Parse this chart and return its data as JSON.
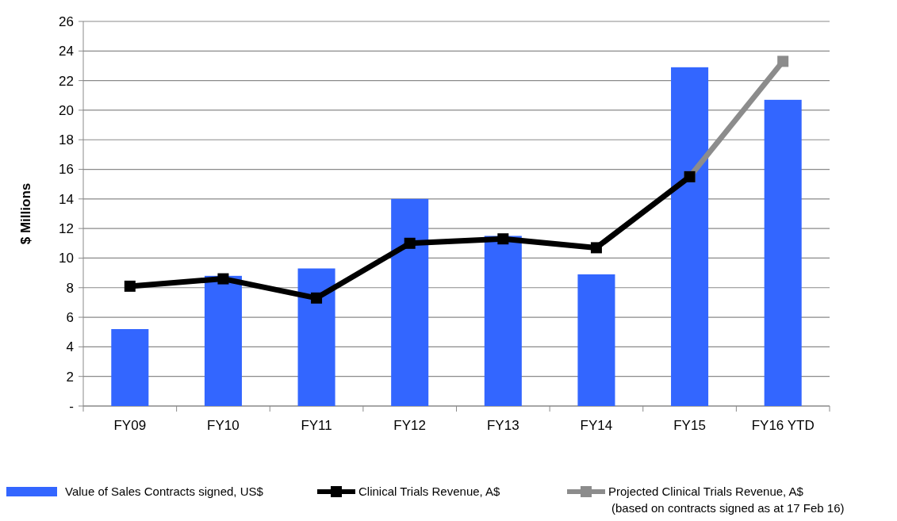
{
  "chart_data": {
    "type": "bar",
    "ylabel": "$ Millions",
    "categories": [
      "FY09",
      "FY10",
      "FY11",
      "FY12",
      "FY13",
      "FY14",
      "FY15",
      "FY16 YTD"
    ],
    "series": [
      {
        "name": "Value of Sales Contracts signed, US$",
        "color": "#3366ff",
        "values": [
          5.2,
          8.8,
          9.3,
          14.0,
          11.5,
          8.9,
          22.9,
          20.7
        ]
      },
      {
        "name": "Clinical Trials Revenue, A$",
        "type": "line",
        "color": "#000000",
        "marker": "square",
        "values": [
          8.1,
          8.6,
          7.3,
          11.0,
          11.3,
          10.7,
          15.5,
          null
        ]
      },
      {
        "name": "Projected Clinical Trials Revenue, A$\n(based on contracts signed as at 17 Feb 16)",
        "type": "line",
        "color": "#8c8c8c",
        "marker": "square",
        "values": [
          null,
          null,
          null,
          null,
          null,
          null,
          15.5,
          23.3
        ]
      }
    ],
    "ylim": [
      0,
      26
    ],
    "yticks": [
      {
        "value": 0,
        "label": "-"
      },
      2,
      4,
      6,
      8,
      10,
      12,
      14,
      16,
      18,
      20,
      22,
      24,
      26
    ],
    "grid": "y",
    "legend": "bottom"
  }
}
